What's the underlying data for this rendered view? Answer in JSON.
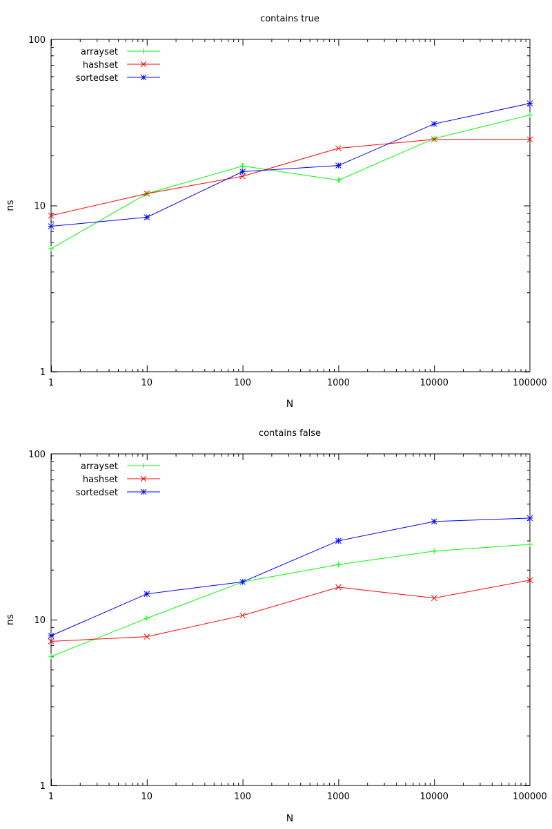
{
  "chart_data": [
    {
      "type": "line",
      "title": "contains true",
      "xlabel": "N",
      "ylabel": "ns",
      "xscale": "log",
      "yscale": "log",
      "xlim": [
        1,
        100000
      ],
      "ylim": [
        1,
        100
      ],
      "x": [
        1,
        10,
        100,
        1000,
        10000,
        100000
      ],
      "xticks": [
        "1",
        "10",
        "100",
        "1000",
        "10000",
        "100000"
      ],
      "yticks": [
        "1",
        "10",
        "100"
      ],
      "legend_position": "top-left",
      "series": [
        {
          "name": "arrayset",
          "color": "#00ff00",
          "marker": "plus",
          "values": [
            5.5,
            11.8,
            17.3,
            14.2,
            25.3,
            35.1
          ]
        },
        {
          "name": "hashset",
          "color": "#ff0000",
          "marker": "cross",
          "values": [
            8.7,
            11.8,
            15.0,
            22.1,
            25.0,
            25.0
          ]
        },
        {
          "name": "sortedset",
          "color": "#0000ff",
          "marker": "star",
          "values": [
            7.5,
            8.5,
            16.0,
            17.4,
            31.0,
            41.2
          ]
        }
      ]
    },
    {
      "type": "line",
      "title": "contains false",
      "xlabel": "N",
      "ylabel": "ns",
      "xscale": "log",
      "yscale": "log",
      "xlim": [
        1,
        100000
      ],
      "ylim": [
        1,
        100
      ],
      "x": [
        1,
        10,
        100,
        1000,
        10000,
        100000
      ],
      "xticks": [
        "1",
        "10",
        "100",
        "1000",
        "10000",
        "100000"
      ],
      "yticks": [
        "1",
        "10",
        "100"
      ],
      "legend_position": "top-left",
      "series": [
        {
          "name": "arrayset",
          "color": "#00ff00",
          "marker": "plus",
          "values": [
            6.0,
            10.2,
            16.9,
            21.5,
            25.9,
            28.5
          ]
        },
        {
          "name": "hashset",
          "color": "#ff0000",
          "marker": "cross",
          "values": [
            7.4,
            7.9,
            10.6,
            15.7,
            13.5,
            17.3
          ]
        },
        {
          "name": "sortedset",
          "color": "#0000ff",
          "marker": "star",
          "values": [
            8.0,
            14.3,
            16.9,
            29.9,
            39.1,
            41.0
          ]
        }
      ]
    }
  ]
}
